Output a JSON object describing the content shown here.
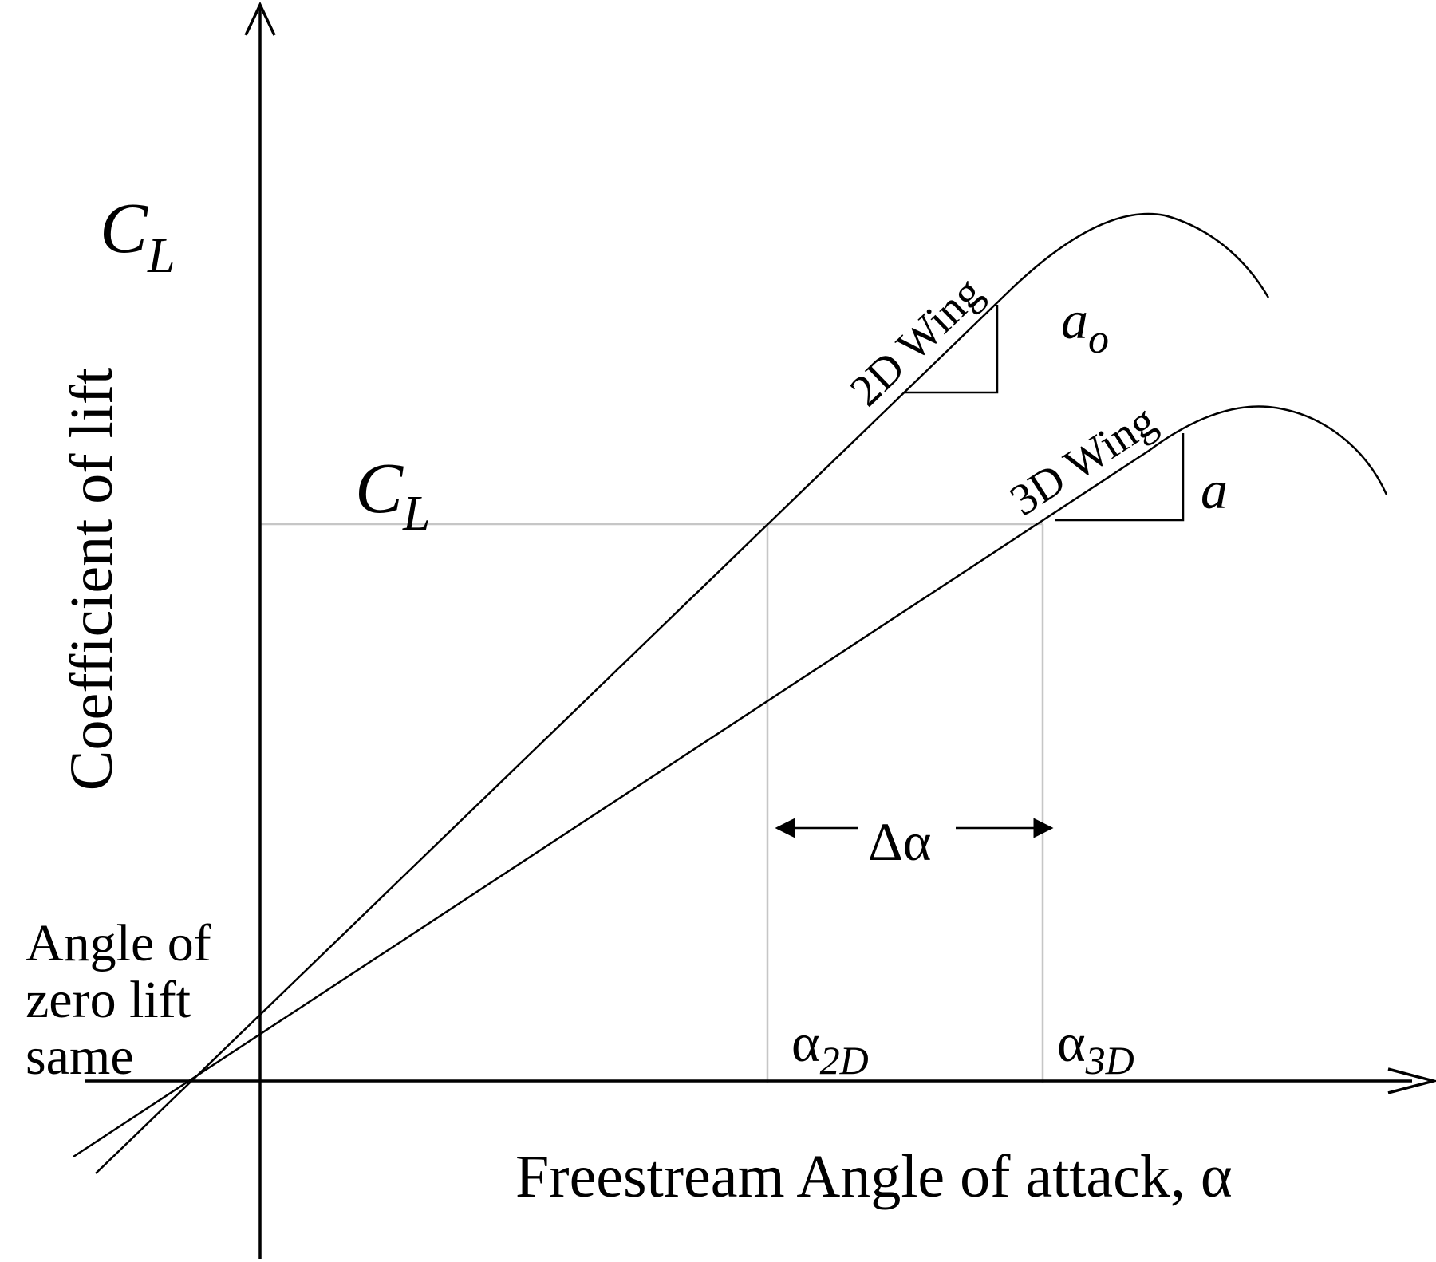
{
  "labels": {
    "y_axis_symbol_main": "C",
    "y_axis_symbol_sub": "L",
    "y_axis_title": "Coefficient of lift",
    "x_axis_title": "Freestream Angle of attack, α",
    "cl_level_main": "C",
    "cl_level_sub": "L",
    "curve_2d": "2D Wing",
    "curve_3d": "3D Wing",
    "slope_2d_main": "a",
    "slope_2d_sub": "o",
    "slope_3d": "a",
    "delta_alpha": "Δα",
    "alpha_2d_main": "α",
    "alpha_2d_sub": "2D",
    "alpha_3d_main": "α",
    "alpha_3d_sub": "3D",
    "zero_lift_line1": "Angle of",
    "zero_lift_line2": "zero lift",
    "zero_lift_line3": "same"
  },
  "colors": {
    "ink": "#000000",
    "guide": "#c6c6c6",
    "background": "#ffffff"
  }
}
